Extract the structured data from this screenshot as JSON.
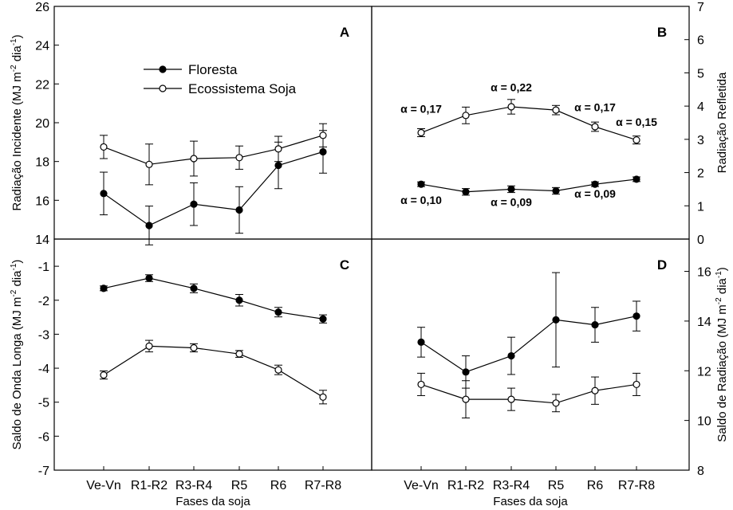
{
  "chart_data": [
    {
      "panel": "A",
      "type": "line",
      "categories": [
        "Ve-Vn",
        "R1-R2",
        "R3-R4",
        "R5",
        "R6",
        "R7-R8"
      ],
      "ylabel": "Radiação Incidente (MJ m-2 dia-1)",
      "ylabel_base": "Radiação Incidente (MJ m",
      "ylabel_exp1": "-2",
      "ylabel_mid": " dia",
      "ylabel_exp2": "-1",
      "ylabel_end": ")",
      "y_axis_side": "left",
      "ylim": [
        14,
        26
      ],
      "yticks": [
        14,
        16,
        18,
        20,
        22,
        24,
        26
      ],
      "legend": {
        "placement": "top-left",
        "entries": [
          "Floresta",
          "Ecossistema Soja"
        ]
      },
      "series": [
        {
          "name": "Floresta",
          "marker": "filled",
          "values": [
            16.35,
            14.7,
            15.8,
            15.5,
            17.8,
            18.5
          ],
          "errors": [
            1.1,
            1.0,
            1.1,
            1.2,
            1.2,
            1.1
          ]
        },
        {
          "name": "Ecossistema Soja",
          "marker": "open",
          "values": [
            18.75,
            17.85,
            18.15,
            18.2,
            18.65,
            19.35
          ],
          "errors": [
            0.6,
            1.05,
            0.9,
            0.6,
            0.65,
            0.6
          ]
        }
      ]
    },
    {
      "panel": "B",
      "type": "line",
      "categories": [
        "Ve-Vn",
        "R1-R2",
        "R3-R4",
        "R5",
        "R6",
        "R7-R8"
      ],
      "ylabel": "Radiação Refletida",
      "y_axis_side": "right",
      "ylim": [
        0,
        7
      ],
      "yticks": [
        0,
        1,
        2,
        3,
        4,
        5,
        6,
        7
      ],
      "series": [
        {
          "marker": "filled",
          "values": [
            1.65,
            1.42,
            1.5,
            1.45,
            1.65,
            1.8
          ],
          "errors": [
            0.07,
            0.1,
            0.1,
            0.1,
            0.07,
            0.07
          ]
        },
        {
          "marker": "open",
          "values": [
            3.2,
            3.72,
            3.98,
            3.88,
            3.38,
            2.98
          ],
          "errors": [
            0.12,
            0.25,
            0.22,
            0.14,
            0.14,
            0.12
          ]
        }
      ],
      "annotations": [
        {
          "text": "α = 0,17",
          "x": 0,
          "y": 3.8
        },
        {
          "text": "α = 0,22",
          "x": 2,
          "y": 4.45
        },
        {
          "text": "α = 0,17",
          "x": 4,
          "y": 3.85
        },
        {
          "text": "α = 0,15",
          "x": 5,
          "y": 3.4
        },
        {
          "text": "α = 0,10",
          "x": 0,
          "y": 1.05
        },
        {
          "text": "α = 0,09",
          "x": 2,
          "y": 1.0
        },
        {
          "text": "α = 0,09",
          "x": 4,
          "y": 1.25
        }
      ]
    },
    {
      "panel": "C",
      "type": "line",
      "categories": [
        "Ve-Vn",
        "R1-R2",
        "R3-R4",
        "R5",
        "R6",
        "R7-R8"
      ],
      "xlabel": "Fases da soja",
      "ylabel": "Saldo de Onda Longa (MJ m-2 dia-1)",
      "ylabel_base": "Saldo de Onda Longa (MJ m",
      "ylabel_exp1": "-2",
      "ylabel_mid": " dia",
      "ylabel_exp2": "-1",
      "ylabel_end": ")",
      "y_axis_side": "left",
      "ylim": [
        -7,
        -0.2
      ],
      "yticks": [
        -7,
        -6,
        -5,
        -4,
        -3,
        -2,
        -1
      ],
      "series": [
        {
          "marker": "filled",
          "values": [
            -1.65,
            -1.35,
            -1.65,
            -2.0,
            -2.35,
            -2.55
          ],
          "errors": [
            0.07,
            0.1,
            0.13,
            0.17,
            0.14,
            0.12
          ]
        },
        {
          "marker": "open",
          "values": [
            -4.2,
            -3.35,
            -3.4,
            -3.58,
            -4.05,
            -4.85
          ],
          "errors": [
            0.12,
            0.17,
            0.12,
            0.1,
            0.14,
            0.2
          ]
        }
      ]
    },
    {
      "panel": "D",
      "type": "line",
      "categories": [
        "Ve-Vn",
        "R1-R2",
        "R3-R4",
        "R5",
        "R6",
        "R7-R8"
      ],
      "xlabel": "Fases da soja",
      "ylabel": "Saldo de Radiação (MJ m-2 dia-1)",
      "ylabel_base": "Saldo de Radiação (MJ m",
      "ylabel_exp1": "-2",
      "ylabel_mid": " dia",
      "ylabel_exp2": "-1",
      "ylabel_end": ")",
      "y_axis_side": "right",
      "ylim": [
        8,
        17.3
      ],
      "yticks": [
        8,
        10,
        12,
        14,
        16
      ],
      "series": [
        {
          "marker": "filled",
          "values": [
            13.15,
            11.95,
            12.6,
            14.05,
            13.85,
            14.2
          ],
          "errors": [
            0.6,
            0.65,
            0.75,
            1.9,
            0.7,
            0.6
          ]
        },
        {
          "marker": "open",
          "values": [
            11.45,
            10.85,
            10.85,
            10.7,
            11.2,
            11.45
          ],
          "errors": [
            0.45,
            0.75,
            0.45,
            0.35,
            0.55,
            0.45
          ]
        }
      ]
    }
  ]
}
